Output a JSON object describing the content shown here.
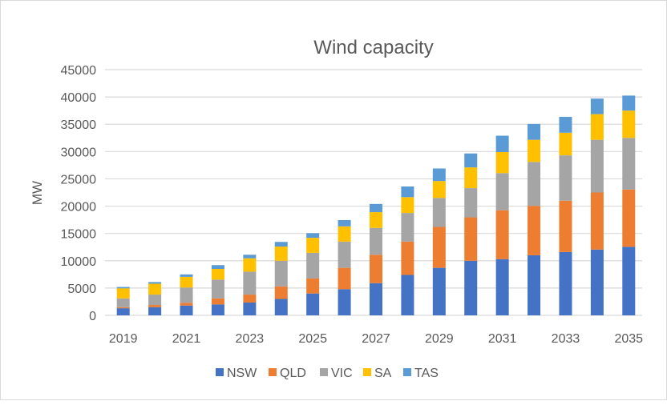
{
  "chart_data": {
    "type": "bar",
    "stacked": true,
    "title": "Wind capacity",
    "xlabel": "",
    "ylabel": "MW",
    "ylim": [
      0,
      45000
    ],
    "yticks": [
      0,
      5000,
      10000,
      15000,
      20000,
      25000,
      30000,
      35000,
      40000,
      45000
    ],
    "grid": true,
    "legend_position": "bottom",
    "categories": [
      "2019",
      "2020",
      "2021",
      "2022",
      "2023",
      "2024",
      "2025",
      "2026",
      "2027",
      "2028",
      "2029",
      "2030",
      "2031",
      "2032",
      "2033",
      "2034",
      "2035"
    ],
    "xtick_labels": [
      "2019",
      "",
      "2021",
      "",
      "2023",
      "",
      "2025",
      "",
      "2027",
      "",
      "2029",
      "",
      "2031",
      "",
      "2033",
      "",
      "2035"
    ],
    "series": [
      {
        "name": "NSW",
        "color": "#4472C4",
        "values": [
          1300,
          1500,
          1800,
          2000,
          2350,
          3000,
          4000,
          4800,
          5900,
          7400,
          8700,
          10000,
          10300,
          11000,
          11600,
          12050,
          12550
        ]
      },
      {
        "name": "QLD",
        "color": "#ED7D31",
        "values": [
          200,
          400,
          500,
          1100,
          1450,
          2300,
          2750,
          3900,
          5200,
          6100,
          7500,
          7950,
          8950,
          9050,
          9400,
          10450,
          10500
        ]
      },
      {
        "name": "VIC",
        "color": "#A5A5A5",
        "values": [
          1600,
          1900,
          2800,
          3450,
          4200,
          4700,
          4700,
          4800,
          4900,
          5250,
          5300,
          5350,
          6800,
          8050,
          8300,
          9650,
          9450
        ]
      },
      {
        "name": "SA",
        "color": "#FFC000",
        "values": [
          1850,
          2000,
          1950,
          1950,
          2450,
          2600,
          2750,
          2800,
          2900,
          2900,
          3100,
          3800,
          3850,
          4050,
          4150,
          4700,
          5000
        ]
      },
      {
        "name": "TAS",
        "color": "#5B9BD5",
        "values": [
          250,
          300,
          450,
          700,
          650,
          850,
          850,
          1150,
          1500,
          1950,
          2300,
          2550,
          3000,
          2900,
          2900,
          2850,
          2750
        ]
      }
    ]
  }
}
